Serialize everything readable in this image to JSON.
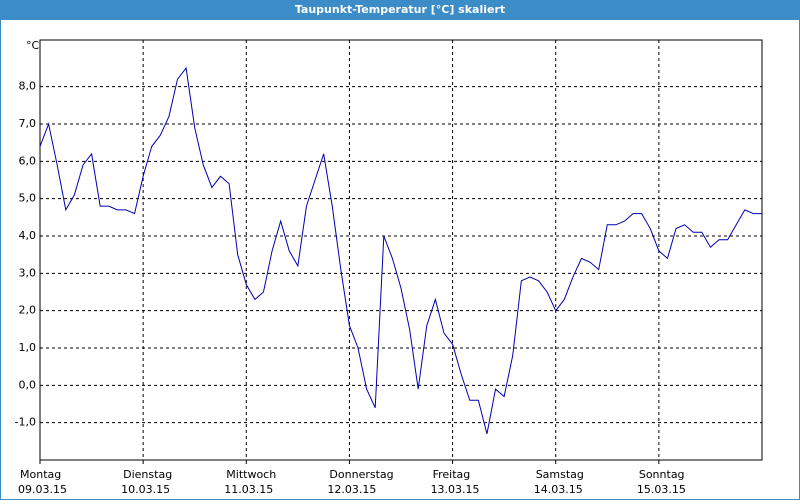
{
  "window_title": "Taupunkt-Temperatur [°C] skaliert",
  "chart_data": {
    "type": "line",
    "y_label": "°C",
    "x": [
      0,
      2,
      4,
      6,
      8,
      10,
      12,
      14,
      16,
      18,
      20,
      22,
      24,
      26,
      28,
      30,
      32,
      34,
      36,
      38,
      40,
      42,
      44,
      46,
      48,
      50,
      52,
      54,
      56,
      58,
      60,
      62,
      64,
      66,
      68,
      70,
      72,
      74,
      76,
      78,
      80,
      82,
      84,
      86,
      88,
      90,
      92,
      94,
      96,
      98,
      100,
      102,
      104,
      106,
      108,
      110,
      112,
      114,
      116,
      118,
      120,
      122,
      124,
      126,
      128,
      130,
      132,
      134,
      136,
      138,
      140,
      142,
      144,
      146,
      148,
      150,
      152,
      154,
      156,
      158,
      160,
      162,
      164,
      166,
      168
    ],
    "series": [
      {
        "name": "Taupunkt-Temperatur",
        "color": "#0000b0",
        "values": [
          6.4,
          7.0,
          5.9,
          4.7,
          5.1,
          5.9,
          6.2,
          4.8,
          4.8,
          4.7,
          4.7,
          4.6,
          5.6,
          6.4,
          6.7,
          7.2,
          8.2,
          8.5,
          6.9,
          5.9,
          5.3,
          5.6,
          5.4,
          3.5,
          2.7,
          2.3,
          2.5,
          3.6,
          4.4,
          3.6,
          3.2,
          4.8,
          5.5,
          6.2,
          4.8,
          3.1,
          1.6,
          1.0,
          -0.1,
          -0.6,
          4.0,
          3.4,
          2.6,
          1.5,
          -0.1,
          1.6,
          2.3,
          1.4,
          1.1,
          0.3,
          -0.4,
          -0.4,
          -1.3,
          -0.1,
          -0.3,
          0.8,
          2.8,
          2.9,
          2.8,
          2.5,
          2.0,
          2.3,
          2.9,
          3.4,
          3.3,
          3.1,
          4.3,
          4.3,
          4.4,
          4.6,
          4.6,
          4.2,
          3.6,
          3.4,
          4.2,
          4.3,
          4.1,
          4.1,
          3.7,
          3.9,
          3.9,
          4.3,
          4.7,
          4.6,
          4.6
        ]
      }
    ],
    "xlim": [
      0,
      168
    ],
    "xticks": [
      {
        "value": 0,
        "label": "Montag",
        "date": "09.03.15"
      },
      {
        "value": 24,
        "label": "Dienstag",
        "date": "10.03.15"
      },
      {
        "value": 48,
        "label": "Mittwoch",
        "date": "11.03.15"
      },
      {
        "value": 72,
        "label": "Donnerstag",
        "date": "12.03.15"
      },
      {
        "value": 96,
        "label": "Freitag",
        "date": "13.03.15"
      },
      {
        "value": 120,
        "label": "Samstag",
        "date": "14.03.15"
      },
      {
        "value": 144,
        "label": "Sonntag",
        "date": "15.03.15"
      }
    ],
    "ylim": [
      -2,
      9.25
    ],
    "yticks": [
      {
        "value": -1,
        "label": "-1,0"
      },
      {
        "value": 0,
        "label": "0,0"
      },
      {
        "value": 1,
        "label": "1,0"
      },
      {
        "value": 2,
        "label": "2,0"
      },
      {
        "value": 3,
        "label": "3,0"
      },
      {
        "value": 4,
        "label": "4,0"
      },
      {
        "value": 5,
        "label": "5,0"
      },
      {
        "value": 6,
        "label": "6,0"
      },
      {
        "value": 7,
        "label": "7,0"
      },
      {
        "value": 8,
        "label": "8,0"
      }
    ],
    "grid": true
  }
}
